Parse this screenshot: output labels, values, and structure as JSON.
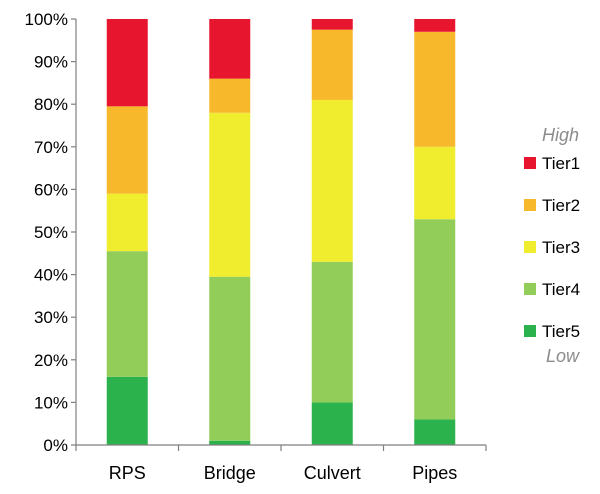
{
  "chart_data": {
    "type": "bar",
    "stacked": true,
    "title": "",
    "xlabel": "",
    "ylabel": "",
    "categories": [
      "RPS",
      "Bridge",
      "Culvert",
      "Pipes"
    ],
    "series": [
      {
        "name": "Tier5",
        "color": "#2bb24c",
        "values": [
          16,
          1,
          10,
          6
        ]
      },
      {
        "name": "Tier4",
        "color": "#92cd5a",
        "values": [
          29.5,
          38.5,
          33,
          47
        ]
      },
      {
        "name": "Tier3",
        "color": "#f0ec2e",
        "values": [
          13.5,
          38.5,
          38,
          17
        ]
      },
      {
        "name": "Tier2",
        "color": "#f7b82c",
        "values": [
          20.5,
          8,
          16.5,
          27
        ]
      },
      {
        "name": "Tier1",
        "color": "#e8152e",
        "values": [
          20.5,
          14,
          2.5,
          3
        ]
      }
    ],
    "ylim": [
      0,
      100
    ],
    "yticks": [
      "0%",
      "10%",
      "20%",
      "30%",
      "40%",
      "50%",
      "60%",
      "70%",
      "80%",
      "90%",
      "100%"
    ],
    "grid": false,
    "legend": {
      "placement": "right",
      "top_note": "High",
      "bottom_note": "Low",
      "order": [
        "Tier1",
        "Tier2",
        "Tier3",
        "Tier4",
        "Tier5"
      ]
    }
  }
}
